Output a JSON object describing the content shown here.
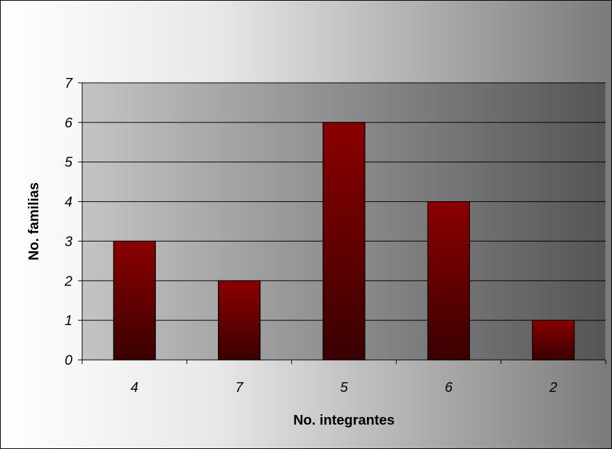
{
  "chart_data": {
    "type": "bar",
    "categories": [
      "4",
      "7",
      "5",
      "6",
      "2"
    ],
    "values": [
      3,
      2,
      6,
      4,
      1
    ],
    "title": "",
    "xlabel": "No. integrantes",
    "ylabel": "No. familias",
    "ylim": [
      0,
      7
    ],
    "yticks": [
      "0",
      "1",
      "2",
      "3",
      "4",
      "5",
      "6",
      "7"
    ],
    "grid": true,
    "legend": "none",
    "colors": {
      "bar_top": "#8b0000",
      "bar_bottom": "#3a0000",
      "plot_left": "#c4c4c4",
      "plot_right": "#555555",
      "frame_left": "#ffffff",
      "frame_right": "#7a7a7a"
    }
  }
}
